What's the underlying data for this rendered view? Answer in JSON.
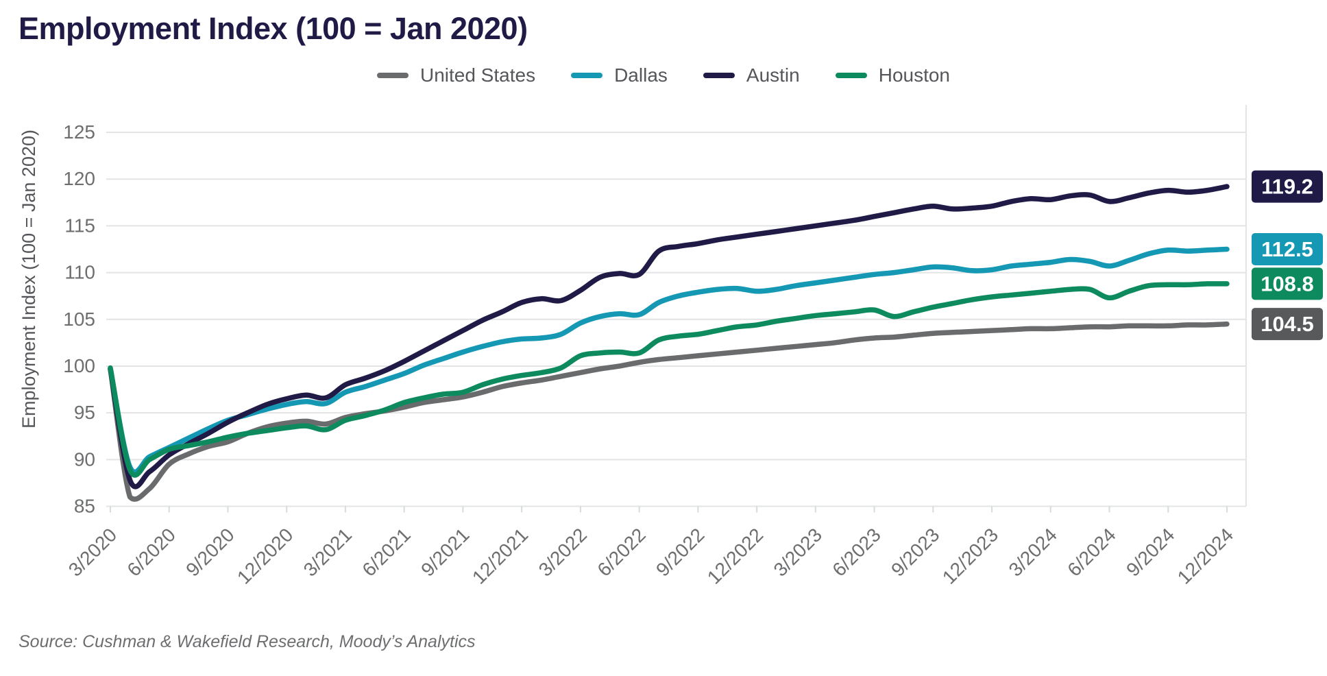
{
  "title": "Employment Index (100 = Jan 2020)",
  "source": "Source: Cushman & Wakefield Research, Moody’s Analytics",
  "colors": {
    "title": "#201b46",
    "grid": "#e3e4e5",
    "axis_text": "#6d6e70",
    "legend_text": "#55565a",
    "label_text": "#ffffff"
  },
  "chart_data": {
    "type": "line",
    "title": "Employment Index (100 = Jan 2020)",
    "ylabel": "Employment Index (100 = Jan 2020)",
    "xlabel": "",
    "ylim": [
      85,
      125
    ],
    "y_ticks": [
      85,
      90,
      95,
      100,
      105,
      110,
      115,
      120,
      125
    ],
    "grid": "horizontal",
    "legend_position": "top",
    "x_tick_labels": [
      "3/2020",
      "6/2020",
      "9/2020",
      "12/2020",
      "3/2021",
      "6/2021",
      "9/2021",
      "12/2021",
      "3/2022",
      "6/2022",
      "9/2022",
      "12/2022",
      "3/2023",
      "6/2023",
      "9/2023",
      "12/2023",
      "3/2024",
      "6/2024",
      "9/2024",
      "12/2024"
    ],
    "months": [
      "3/2020",
      "4/2020",
      "5/2020",
      "6/2020",
      "7/2020",
      "8/2020",
      "9/2020",
      "10/2020",
      "11/2020",
      "12/2020",
      "1/2021",
      "2/2021",
      "3/2021",
      "4/2021",
      "5/2021",
      "6/2021",
      "7/2021",
      "8/2021",
      "9/2021",
      "10/2021",
      "11/2021",
      "12/2021",
      "1/2022",
      "2/2022",
      "3/2022",
      "4/2022",
      "5/2022",
      "6/2022",
      "7/2022",
      "8/2022",
      "9/2022",
      "10/2022",
      "11/2022",
      "12/2022",
      "1/2023",
      "2/2023",
      "3/2023",
      "4/2023",
      "5/2023",
      "6/2023",
      "7/2023",
      "8/2023",
      "9/2023",
      "10/2023",
      "11/2023",
      "12/2023",
      "1/2024",
      "2/2024",
      "3/2024",
      "4/2024",
      "5/2024",
      "6/2024",
      "7/2024",
      "8/2024",
      "9/2024",
      "10/2024",
      "11/2024",
      "12/2024"
    ],
    "series": [
      {
        "name": "United States",
        "color": "#6a6b6d",
        "label_bg": "#58595b",
        "end_label": "104.5",
        "values": [
          99.7,
          86.0,
          86.9,
          89.5,
          90.6,
          91.4,
          91.9,
          92.8,
          93.5,
          93.9,
          94.1,
          93.8,
          94.5,
          94.9,
          95.2,
          95.6,
          96.1,
          96.4,
          96.7,
          97.2,
          97.8,
          98.2,
          98.5,
          98.9,
          99.3,
          99.7,
          100.0,
          100.4,
          100.7,
          100.9,
          101.1,
          101.3,
          101.5,
          101.7,
          101.9,
          102.1,
          102.3,
          102.5,
          102.8,
          103.0,
          103.1,
          103.3,
          103.5,
          103.6,
          103.7,
          103.8,
          103.9,
          104.0,
          104.0,
          104.1,
          104.2,
          104.2,
          104.3,
          104.3,
          104.3,
          104.4,
          104.4,
          104.5
        ]
      },
      {
        "name": "Dallas",
        "color": "#1598b4",
        "label_bg": "#1598b4",
        "end_label": "112.5",
        "values": [
          99.7,
          89.2,
          90.3,
          91.3,
          92.3,
          93.3,
          94.2,
          94.8,
          95.4,
          95.9,
          96.2,
          96.0,
          97.2,
          97.8,
          98.5,
          99.2,
          100.1,
          100.8,
          101.5,
          102.1,
          102.6,
          102.9,
          103.0,
          103.4,
          104.6,
          105.3,
          105.6,
          105.5,
          106.8,
          107.5,
          107.9,
          108.2,
          108.3,
          108.0,
          108.2,
          108.6,
          108.9,
          109.2,
          109.5,
          109.8,
          110.0,
          110.3,
          110.6,
          110.5,
          110.2,
          110.3,
          110.7,
          110.9,
          111.1,
          111.4,
          111.2,
          110.7,
          111.3,
          112.0,
          112.4,
          112.3,
          112.4,
          112.5
        ]
      },
      {
        "name": "Austin",
        "color": "#201b46",
        "label_bg": "#201b46",
        "end_label": "119.2",
        "values": [
          99.7,
          87.8,
          88.7,
          90.5,
          91.7,
          92.8,
          94.0,
          95.0,
          95.9,
          96.5,
          96.9,
          96.6,
          98.0,
          98.7,
          99.5,
          100.5,
          101.6,
          102.7,
          103.8,
          104.9,
          105.8,
          106.8,
          107.2,
          107.0,
          108.1,
          109.5,
          109.9,
          109.8,
          112.3,
          112.8,
          113.1,
          113.5,
          113.8,
          114.1,
          114.4,
          114.7,
          115.0,
          115.3,
          115.6,
          116.0,
          116.4,
          116.8,
          117.1,
          116.8,
          116.9,
          117.1,
          117.6,
          117.9,
          117.8,
          118.2,
          118.3,
          117.6,
          118.0,
          118.5,
          118.8,
          118.6,
          118.8,
          119.2
        ]
      },
      {
        "name": "Houston",
        "color": "#0d8a5e",
        "label_bg": "#0d8a5e",
        "end_label": "108.8",
        "values": [
          99.8,
          88.9,
          90.0,
          91.1,
          91.5,
          91.9,
          92.4,
          92.8,
          93.1,
          93.4,
          93.6,
          93.2,
          94.2,
          94.7,
          95.3,
          96.1,
          96.6,
          97.0,
          97.2,
          98.0,
          98.6,
          99.0,
          99.3,
          99.8,
          101.1,
          101.4,
          101.5,
          101.4,
          102.8,
          103.2,
          103.4,
          103.8,
          104.2,
          104.4,
          104.8,
          105.1,
          105.4,
          105.6,
          105.8,
          106.0,
          105.3,
          105.8,
          106.3,
          106.7,
          107.1,
          107.4,
          107.6,
          107.8,
          108.0,
          108.2,
          108.2,
          107.3,
          108.0,
          108.6,
          108.7,
          108.7,
          108.8,
          108.8
        ]
      }
    ]
  }
}
